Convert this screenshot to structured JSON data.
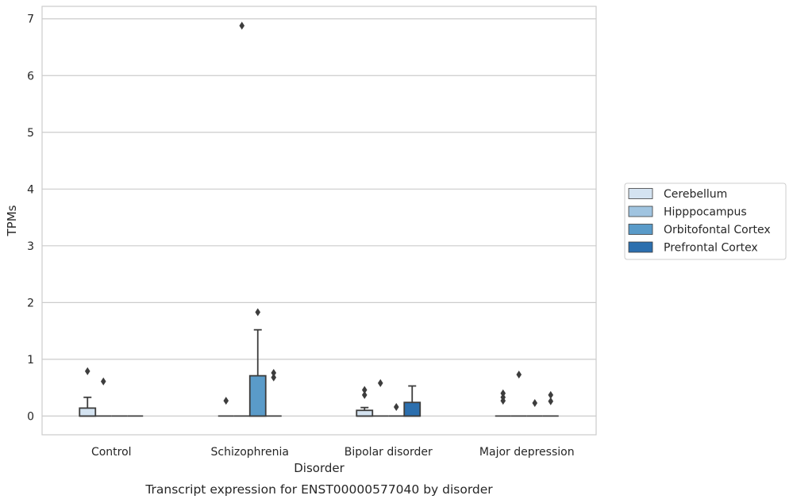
{
  "chart_data": {
    "type": "box",
    "caption": "Transcript expression for ENST00000577040 by disorder",
    "xlabel": "Disorder",
    "ylabel": "TPMs",
    "ylim": [
      -0.33,
      7.22
    ],
    "yticks": [
      0,
      1,
      2,
      3,
      4,
      5,
      6,
      7
    ],
    "grid": "horizontal",
    "legend_position": "right",
    "categories": [
      "Control",
      "Schizophrenia",
      "Bipolar disorder",
      "Major depression"
    ],
    "series": [
      {
        "name": "Cerebellum",
        "color": "#d4e3f1",
        "boxes": [
          {
            "q1": 0.0,
            "median": 0.0,
            "q3": 0.14,
            "whisker_low": 0.0,
            "whisker_high": 0.33,
            "outliers": [
              0.79
            ]
          },
          {
            "q1": 0.0,
            "median": 0.0,
            "q3": 0.0,
            "whisker_low": 0.0,
            "whisker_high": 0.0,
            "outliers": [
              0.27
            ]
          },
          {
            "q1": 0.0,
            "median": 0.0,
            "q3": 0.1,
            "whisker_low": 0.0,
            "whisker_high": 0.15,
            "outliers": [
              0.37,
              0.46
            ]
          },
          {
            "q1": 0.0,
            "median": 0.0,
            "q3": 0.0,
            "whisker_low": 0.0,
            "whisker_high": 0.0,
            "outliers": [
              0.27,
              0.33,
              0.4
            ]
          }
        ]
      },
      {
        "name": "Hipppocampus",
        "color": "#a0c4e0",
        "boxes": [
          {
            "q1": 0.0,
            "median": 0.0,
            "q3": 0.0,
            "whisker_low": 0.0,
            "whisker_high": 0.0,
            "outliers": [
              0.61
            ]
          },
          {
            "q1": 0.0,
            "median": 0.0,
            "q3": 0.0,
            "whisker_low": 0.0,
            "whisker_high": 0.0,
            "outliers": [
              6.88
            ]
          },
          {
            "q1": 0.0,
            "median": 0.0,
            "q3": 0.0,
            "whisker_low": 0.0,
            "whisker_high": 0.0,
            "outliers": [
              0.58
            ]
          },
          {
            "q1": 0.0,
            "median": 0.0,
            "q3": 0.0,
            "whisker_low": 0.0,
            "whisker_high": 0.0,
            "outliers": [
              0.73
            ]
          }
        ]
      },
      {
        "name": "Orbitofontal Cortex",
        "color": "#5a9bc9",
        "boxes": [
          {
            "q1": 0.0,
            "median": 0.0,
            "q3": 0.0,
            "whisker_low": 0.0,
            "whisker_high": 0.0,
            "outliers": []
          },
          {
            "q1": 0.0,
            "median": 0.0,
            "q3": 0.71,
            "whisker_low": 0.0,
            "whisker_high": 1.52,
            "outliers": [
              1.83
            ]
          },
          {
            "q1": 0.0,
            "median": 0.0,
            "q3": 0.0,
            "whisker_low": 0.0,
            "whisker_high": 0.0,
            "outliers": [
              0.16
            ]
          },
          {
            "q1": 0.0,
            "median": 0.0,
            "q3": 0.0,
            "whisker_low": 0.0,
            "whisker_high": 0.0,
            "outliers": [
              0.23
            ]
          }
        ]
      },
      {
        "name": "Prefrontal Cortex",
        "color": "#2c6fae",
        "boxes": [
          {
            "q1": 0.0,
            "median": 0.0,
            "q3": 0.0,
            "whisker_low": 0.0,
            "whisker_high": 0.0,
            "outliers": []
          },
          {
            "q1": 0.0,
            "median": 0.0,
            "q3": 0.0,
            "whisker_low": 0.0,
            "whisker_high": 0.0,
            "outliers": [
              0.68,
              0.76
            ]
          },
          {
            "q1": 0.0,
            "median": 0.0,
            "q3": 0.24,
            "whisker_low": 0.0,
            "whisker_high": 0.53,
            "outliers": []
          },
          {
            "q1": 0.0,
            "median": 0.0,
            "q3": 0.0,
            "whisker_low": 0.0,
            "whisker_high": 0.0,
            "outliers": [
              0.26,
              0.37
            ]
          }
        ]
      }
    ]
  }
}
